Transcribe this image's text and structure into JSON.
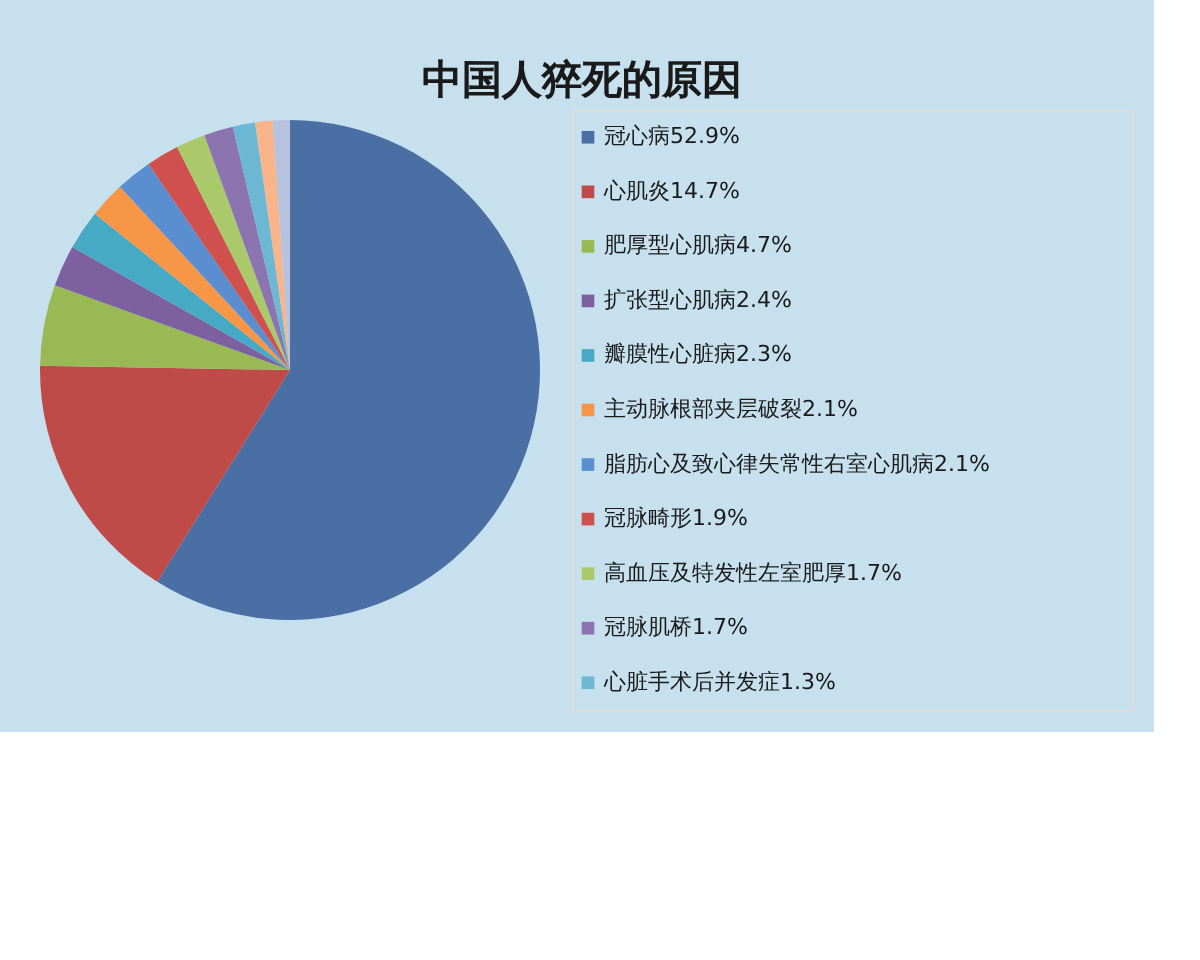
{
  "chart_data": {
    "type": "pie",
    "title": "中国人猝死的原因",
    "categories": [
      "冠心病52.9%",
      "心肌炎14.7%",
      "肥厚型心肌病4.7%",
      "扩张型心肌病2.4%",
      "瓣膜性心脏病2.3%",
      "主动脉根部夹层破裂2.1%",
      "脂肪心及致心律失常性右室心肌病2.1%",
      "冠脉畸形1.9%",
      "高血压及特发性左室肥厚1.7%",
      "冠脉肌桥1.7%",
      "心脏手术后并发症1.3%",
      null,
      null
    ],
    "values": [
      52.9,
      14.7,
      4.7,
      2.4,
      2.3,
      2.1,
      2.1,
      1.9,
      1.7,
      1.7,
      1.3,
      1.0,
      1.0
    ],
    "colors": [
      "#4a6fa5",
      "#be4b48",
      "#98b954",
      "#7d60a0",
      "#46aac5",
      "#f79646",
      "#5a8ed0",
      "#d0504d",
      "#a9c96a",
      "#8c74b0",
      "#6cb8d4",
      "#f9b48a",
      "#b7c3de"
    ],
    "legend": "right"
  }
}
